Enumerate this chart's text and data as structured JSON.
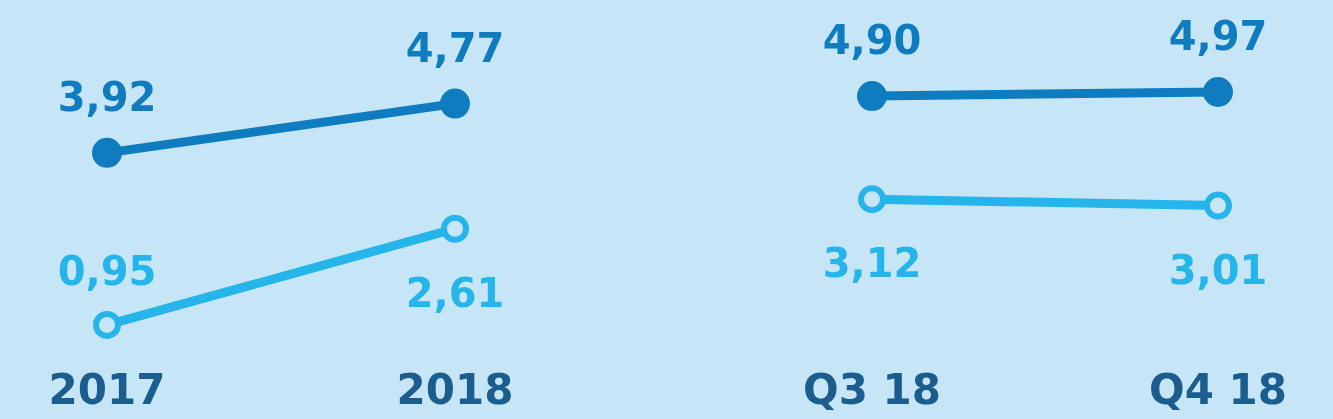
{
  "chart_data": [
    {
      "type": "line",
      "categories": [
        "2017",
        "2018"
      ],
      "tick_labels": "x",
      "marker": "circle",
      "series": [
        {
          "color": "#0f7cc0",
          "values": [
            3.92,
            4.77
          ],
          "value_labels": [
            "3,92",
            "4,77"
          ]
        },
        {
          "color": "#25b5ea",
          "values": [
            0.95,
            2.61
          ],
          "value_labels": [
            "0,95",
            "2,61"
          ]
        }
      ]
    },
    {
      "type": "line",
      "categories": [
        "Q3 18",
        "Q4 18"
      ],
      "tick_labels": "x",
      "marker": "circle",
      "series": [
        {
          "color": "#0f7cc0",
          "values": [
            4.9,
            4.97
          ],
          "value_labels": [
            "4,90",
            "4,97"
          ]
        },
        {
          "color": "#25b5ea",
          "values": [
            3.12,
            3.01
          ],
          "value_labels": [
            "3,12",
            "3,01"
          ]
        }
      ]
    }
  ]
}
